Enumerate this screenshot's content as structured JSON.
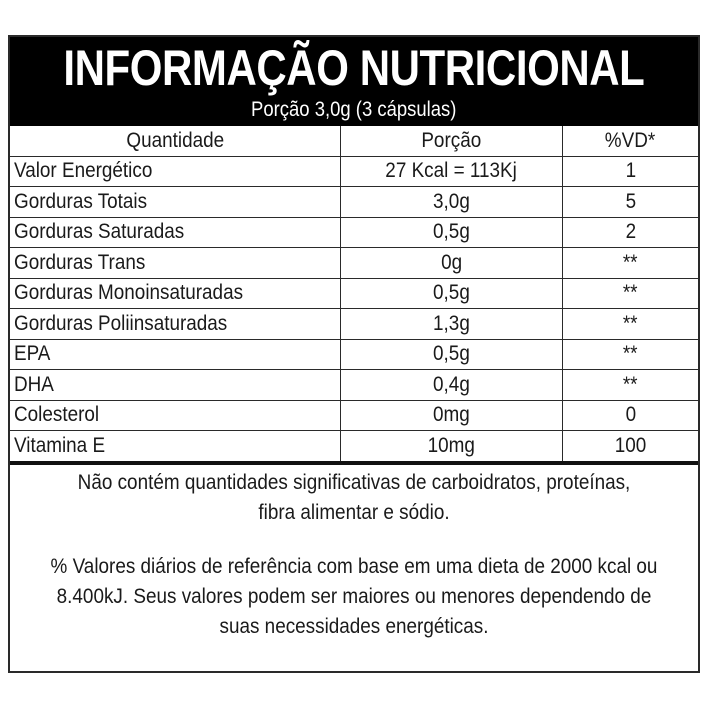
{
  "title": "INFORMAÇÃO NUTRICIONAL",
  "serving": "Porção 3,0g (3 cápsulas)",
  "columns": [
    "Quantidade",
    "Porção",
    "%VD*"
  ],
  "rows": [
    {
      "name": "Valor Energético",
      "portion": "27 Kcal = 113Kj",
      "dv": "1"
    },
    {
      "name": "Gorduras Totais",
      "portion": "3,0g",
      "dv": "5"
    },
    {
      "name": "Gorduras Saturadas",
      "portion": "0,5g",
      "dv": "2"
    },
    {
      "name": "Gorduras Trans",
      "portion": "0g",
      "dv": "**"
    },
    {
      "name": "Gorduras Monoinsaturadas",
      "portion": "0,5g",
      "dv": "**"
    },
    {
      "name": "Gorduras Poliinsaturadas",
      "portion": "1,3g",
      "dv": "**"
    },
    {
      "name": "EPA",
      "portion": "0,5g",
      "dv": "**"
    },
    {
      "name": "DHA",
      "portion": "0,4g",
      "dv": "**"
    },
    {
      "name": "Colesterol",
      "portion": "0mg",
      "dv": "0"
    },
    {
      "name": "Vitamina E",
      "portion": "10mg",
      "dv": "100"
    }
  ],
  "footer": {
    "note": "Não contém quantidades significativas de carboidratos, proteínas, fibra alimentar e sódio.",
    "daily_values": "% Valores diários de referência com base em uma dieta de 2000 kcal ou 8.400kJ. Seus valores podem ser maiores ou menores dependendo de suas necessidades energéticas."
  }
}
